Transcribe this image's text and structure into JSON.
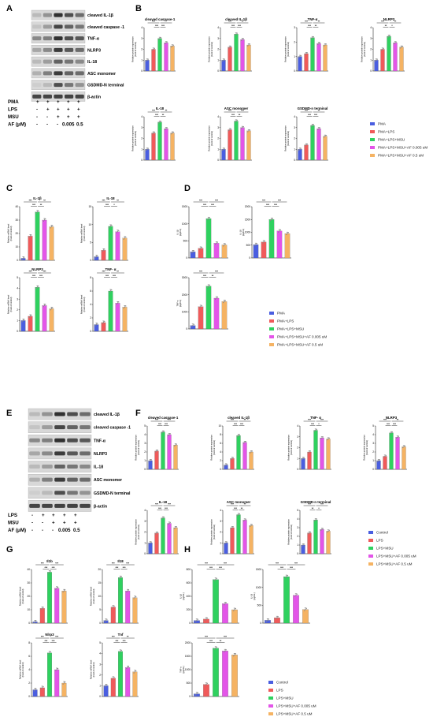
{
  "colors": [
    "#4a5ee0",
    "#f05a5a",
    "#2fd15f",
    "#e355e8",
    "#f5b363"
  ],
  "panels": [
    "A",
    "B",
    "C",
    "D",
    "E",
    "F",
    "G",
    "H"
  ],
  "blotA": {
    "labels": [
      "cleaved IL-1β",
      "cleaved caspase -1",
      "TNF-α",
      "NLRP3",
      "IL-18",
      "ASC monomer",
      "GSDMD-N terminal",
      "β-actin"
    ],
    "treat": [
      {
        "name": "PMA",
        "marks": [
          "+",
          "+",
          "+",
          "+",
          "+"
        ]
      },
      {
        "name": "LPS",
        "marks": [
          "-",
          "+",
          "+",
          "+",
          "+"
        ]
      },
      {
        "name": "MSU",
        "marks": [
          "-",
          "-",
          "+",
          "+",
          "+"
        ]
      },
      {
        "name": "AF (μM)",
        "marks": [
          "-",
          "-",
          "-",
          "0.005",
          "0.5"
        ]
      }
    ]
  },
  "blotE": {
    "labels": [
      "cleaved IL-1β",
      "cleaved caspase -1",
      "TNF-α",
      "NLRP3",
      "IL-18",
      "ASC monomer",
      "GSDMD-N terminal",
      "β-actin"
    ],
    "treat": [
      {
        "name": "LPS",
        "marks": [
          "-",
          "+",
          "+",
          "+",
          "+"
        ]
      },
      {
        "name": "MSU",
        "marks": [
          "-",
          "-",
          "+",
          "+",
          "+"
        ]
      },
      {
        "name": "AF (μM)",
        "marks": [
          "-",
          "-",
          "-",
          "0.005",
          "0.5"
        ]
      }
    ]
  },
  "legends": {
    "B": [
      "PMA",
      "PMA+LPS",
      "PMA+LPS+MSU",
      "PMA+LPS+MSU+AF 0.005 uM",
      "PMA+LPS+MSU+AF 0.5 uM"
    ],
    "D": [
      "PMA",
      "PMA+LPS",
      "PMA+LPS+MSU",
      "PMA+LPS+MSU+AF 0.005 uM",
      "PMA+LPS+MSU+AF 0.5 uM"
    ],
    "F": [
      "Control",
      "LPS",
      "LPS+MSU",
      "LPS+MSU+AF 0.005 uM",
      "LPS+MSU+AF 0.5 uM"
    ],
    "H": [
      "Control",
      "LPS",
      "LPS+MSU",
      "LPS+MSU+AF 0.005 uM",
      "LPS+MSU+AF 0.5 uM"
    ]
  },
  "chart_data": [
    {
      "id": "B1",
      "type": "bar",
      "title": "cleaved caspase-1",
      "ylabel": "Relative protein expression (Fold of control)",
      "ylim": [
        0,
        4
      ],
      "values": [
        1.0,
        2.0,
        3.0,
        2.6,
        2.3
      ],
      "sig": [
        "***",
        "*",
        "***",
        "***"
      ]
    },
    {
      "id": "B2",
      "type": "bar",
      "title": "cleaved IL-1β",
      "ylabel": "Relative protein expression (Fold of control)",
      "ylim": [
        0,
        4
      ],
      "values": [
        1.0,
        2.2,
        3.4,
        2.9,
        2.4
      ],
      "sig": [
        "***",
        "**",
        "***",
        "***"
      ]
    },
    {
      "id": "B3",
      "type": "bar",
      "title": "TNF-α",
      "ylabel": "Relative protein expression (Fold of control)",
      "ylim": [
        0,
        3
      ],
      "values": [
        1.0,
        1.2,
        2.3,
        1.9,
        1.8
      ],
      "sig": [
        "***",
        "**",
        "***",
        "**"
      ]
    },
    {
      "id": "B4",
      "type": "bar",
      "title": "NLRP3",
      "ylabel": "Relative protein expression (Fold of control)",
      "ylim": [
        0,
        4
      ],
      "values": [
        1.0,
        2.0,
        3.2,
        2.6,
        2.2
      ],
      "sig": [
        "***",
        "**",
        "**",
        "*"
      ]
    },
    {
      "id": "B5",
      "type": "bar",
      "title": "IL-18",
      "ylabel": "Relative protein expression (Fold of control)",
      "ylim": [
        0,
        4
      ],
      "values": [
        1.0,
        2.5,
        3.5,
        2.9,
        2.5
      ],
      "sig": [
        "***",
        "**",
        "***",
        "**"
      ]
    },
    {
      "id": "B6",
      "type": "bar",
      "title": "ASC monomer",
      "ylabel": "Relative protein expression (Fold of control)",
      "ylim": [
        0,
        4
      ],
      "values": [
        1.0,
        2.8,
        3.6,
        3.0,
        2.7
      ],
      "sig": [
        "***",
        "***",
        "***",
        "**"
      ]
    },
    {
      "id": "B7",
      "type": "bar",
      "title": "GSDMD-n terminal",
      "ylabel": "Relative protein expression (Fold of control)",
      "ylim": [
        0,
        4
      ],
      "values": [
        1.0,
        1.4,
        3.2,
        2.9,
        2.2
      ],
      "sig": [
        "***",
        "**",
        "***",
        "***"
      ]
    },
    {
      "id": "C1",
      "type": "bar",
      "title": "IL-1β",
      "ylabel": "Relative mRNA level (Fold of control)",
      "ylim": [
        0,
        40
      ],
      "values": [
        1.5,
        18,
        36,
        30,
        25
      ],
      "sig": [
        "***",
        "**",
        "***",
        "**"
      ]
    },
    {
      "id": "C2",
      "type": "bar",
      "title": "IL-18",
      "ylabel": "Relative mRNA level (Fold of control)",
      "ylim": [
        0,
        15
      ],
      "values": [
        1.0,
        2.8,
        9.5,
        8.0,
        6.2
      ],
      "sig": [
        "***",
        "**",
        "***",
        "*"
      ]
    },
    {
      "id": "C3",
      "type": "bar",
      "title": "NLRP3",
      "ylabel": "Relative mRNA level (Fold of control)",
      "ylim": [
        0,
        5
      ],
      "values": [
        1.0,
        1.4,
        4.1,
        2.4,
        2.1
      ],
      "sig": [
        "***",
        "***",
        "***",
        "***"
      ]
    },
    {
      "id": "C4",
      "type": "bar",
      "title": "TNF- α",
      "ylabel": "Relative mRNA level (Fold of control)",
      "ylim": [
        0,
        8
      ],
      "values": [
        1.0,
        1.3,
        6.0,
        4.2,
        3.6
      ],
      "sig": [
        "***",
        "**",
        "***",
        "***"
      ]
    },
    {
      "id": "D1",
      "type": "bar",
      "title": "",
      "ylabel": "IL-1β (pg/mL)",
      "ylim": [
        0,
        1500
      ],
      "values": [
        180,
        280,
        1150,
        430,
        380
      ],
      "sig": [
        "***",
        "***",
        "***",
        "***"
      ]
    },
    {
      "id": "D2",
      "type": "bar",
      "title": "",
      "ylabel": "IL-18 (pg/mL)",
      "ylim": [
        0,
        2000
      ],
      "values": [
        520,
        620,
        1500,
        1050,
        950
      ],
      "sig": [
        "***",
        "***",
        "***",
        "***"
      ]
    },
    {
      "id": "D3",
      "type": "bar",
      "title": "",
      "ylabel": "TNF-α (pg/mL)",
      "ylim": [
        0,
        3000
      ],
      "values": [
        200,
        1300,
        2500,
        1800,
        1600
      ],
      "sig": [
        "***",
        "***",
        "***",
        "**"
      ]
    },
    {
      "id": "F1",
      "type": "bar",
      "title": "cleaved caspase-1",
      "ylabel": "Relative protein expression (Fold of control)",
      "ylim": [
        0,
        5
      ],
      "values": [
        1.0,
        2.1,
        4.3,
        4.0,
        2.8
      ],
      "sig": [
        "***",
        "***",
        "***",
        "***"
      ]
    },
    {
      "id": "F2",
      "type": "bar",
      "title": "cleaved IL-1β",
      "ylabel": "Relative protein expression (Fold of control)",
      "ylim": [
        0,
        10
      ],
      "values": [
        1.0,
        2.5,
        7.8,
        6.2,
        4.0
      ],
      "sig": [
        "***",
        "**",
        "***",
        "***"
      ]
    },
    {
      "id": "F3",
      "type": "bar",
      "title": "TNF- α",
      "ylabel": "Relative protein expression (Fold of control)",
      "ylim": [
        0,
        4
      ],
      "values": [
        1.0,
        1.6,
        3.6,
        2.9,
        2.8
      ],
      "sig": [
        "***",
        "***",
        "***",
        "*"
      ]
    },
    {
      "id": "F4",
      "type": "bar",
      "title": "NLRP3",
      "ylabel": "Relative protein expression (Fold of control)",
      "ylim": [
        0,
        5
      ],
      "values": [
        1.0,
        1.5,
        4.2,
        3.7,
        2.6
      ],
      "sig": [
        "***",
        "**",
        "***",
        "***"
      ]
    },
    {
      "id": "F5",
      "type": "bar",
      "title": "IL-18",
      "ylabel": "Relative protein expression (Fold of control)",
      "ylim": [
        0,
        4
      ],
      "values": [
        1.0,
        1.9,
        3.3,
        2.8,
        2.4
      ],
      "sig": [
        "***",
        "***",
        "***",
        "***"
      ]
    },
    {
      "id": "F6",
      "type": "bar",
      "title": "ASC monomer",
      "ylabel": "Relative protein expression (Fold of control)",
      "ylim": [
        0,
        4
      ],
      "values": [
        1.0,
        2.4,
        3.6,
        3.1,
        2.6
      ],
      "sig": [
        "***",
        "**",
        "***",
        "**"
      ]
    },
    {
      "id": "F7",
      "type": "bar",
      "title": "GSDMD-n terminal",
      "ylabel": "Relative protein expression (Fold of control)",
      "ylim": [
        0,
        5
      ],
      "values": [
        1.0,
        2.4,
        3.9,
        2.8,
        2.6
      ],
      "sig": [
        "***",
        "***",
        "**",
        "*"
      ]
    },
    {
      "id": "G1",
      "type": "bar",
      "title": "Il1b",
      "ylabel": "Relative mRNA level (Fold of control)",
      "ylim": [
        0,
        40
      ],
      "values": [
        1.0,
        11,
        38,
        26,
        24
      ],
      "sig": [
        "***",
        "***",
        "***",
        "***"
      ]
    },
    {
      "id": "G2",
      "type": "bar",
      "title": "Il18",
      "ylabel": "Relative mRNA level (Fold of control)",
      "ylim": [
        0,
        20
      ],
      "values": [
        1.0,
        6.0,
        17,
        12,
        9.5
      ],
      "sig": [
        "***",
        "***",
        "***",
        "***"
      ]
    },
    {
      "id": "G3",
      "type": "bar",
      "title": "Nlrp3",
      "ylabel": "Relative mRNA level (Fold of control)",
      "ylim": [
        0,
        8
      ],
      "values": [
        1.0,
        1.3,
        6.5,
        4.0,
        2.0
      ],
      "sig": [
        "***",
        "***",
        "***",
        "***"
      ]
    },
    {
      "id": "G4",
      "type": "bar",
      "title": "Tnf",
      "ylabel": "Relative mRNA level (Fold of control)",
      "ylim": [
        0,
        5
      ],
      "values": [
        1.0,
        1.7,
        4.2,
        2.7,
        2.3
      ],
      "sig": [
        "***",
        "**",
        "***",
        "***"
      ]
    },
    {
      "id": "H1",
      "type": "bar",
      "title": "",
      "ylabel": "IL-1β (pg/mL)",
      "ylim": [
        0,
        800
      ],
      "values": [
        40,
        60,
        650,
        290,
        200
      ],
      "sig": [
        "***",
        "***",
        "***",
        "***"
      ]
    },
    {
      "id": "H2",
      "type": "bar",
      "title": "",
      "ylabel": "IL-18 (pg/mL)",
      "ylim": [
        0,
        1500
      ],
      "values": [
        80,
        150,
        1300,
        780,
        380
      ],
      "sig": [
        "***",
        "***",
        "***",
        "***"
      ]
    },
    {
      "id": "H3",
      "type": "bar",
      "title": "",
      "ylabel": "TNF-α (pg/mL)",
      "ylim": [
        0,
        2000
      ],
      "values": [
        100,
        450,
        1800,
        1700,
        1550
      ],
      "sig": [
        "***",
        "***",
        "***",
        "**"
      ]
    }
  ]
}
